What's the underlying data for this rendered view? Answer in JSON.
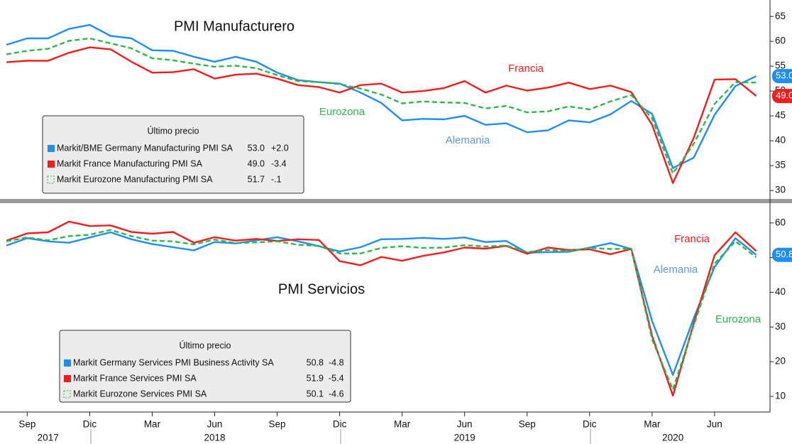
{
  "chart_data": [
    {
      "type": "line",
      "title": "PMI Manufacturero",
      "x": [
        "2017-08",
        "2017-09",
        "2017-10",
        "2017-11",
        "2017-12",
        "2018-01",
        "2018-02",
        "2018-03",
        "2018-04",
        "2018-05",
        "2018-06",
        "2018-07",
        "2018-08",
        "2018-09",
        "2018-10",
        "2018-11",
        "2018-12",
        "2019-01",
        "2019-02",
        "2019-03",
        "2019-04",
        "2019-05",
        "2019-06",
        "2019-07",
        "2019-08",
        "2019-09",
        "2019-10",
        "2019-11",
        "2019-12",
        "2020-01",
        "2020-02",
        "2020-03",
        "2020-04",
        "2020-05",
        "2020-06",
        "2020-07",
        "2020-08"
      ],
      "ylim": [
        28.3,
        67.6
      ],
      "yticks": [
        30,
        35,
        40,
        45,
        50,
        55,
        60,
        65
      ],
      "legend_title": "Último precio",
      "series": [
        {
          "name": "Markit/BME Germany Manufacturing PMI SA",
          "color": "#1f8ef1",
          "last": "53.0",
          "change": "+2.0",
          "badge": true,
          "dashed": false,
          "values": [
            59.3,
            60.6,
            60.6,
            62.5,
            63.3,
            61.1,
            60.6,
            58.2,
            58.1,
            56.9,
            55.9,
            56.9,
            55.9,
            53.7,
            52.2,
            51.8,
            51.5,
            49.7,
            47.6,
            44.1,
            44.4,
            44.3,
            45.0,
            43.2,
            43.5,
            41.7,
            42.1,
            44.1,
            43.7,
            45.3,
            48.0,
            45.4,
            34.5,
            36.6,
            45.2,
            51.0,
            53.0
          ]
        },
        {
          "name": "Markit France Manufacturing PMI SA",
          "color": "#f21d1d",
          "last": "49.0",
          "change": "-3.4",
          "badge": true,
          "dashed": false,
          "values": [
            55.8,
            56.1,
            56.1,
            57.7,
            58.8,
            58.4,
            55.9,
            53.7,
            53.8,
            54.4,
            52.5,
            53.3,
            53.5,
            52.5,
            51.2,
            50.8,
            49.7,
            51.2,
            51.5,
            49.7,
            50.0,
            50.6,
            52.0,
            49.7,
            51.1,
            50.1,
            50.7,
            51.7,
            50.4,
            51.1,
            49.8,
            43.2,
            31.5,
            40.6,
            52.3,
            52.4,
            49.0
          ]
        },
        {
          "name": "Markit Eurozone Manufacturing PMI SA",
          "color": "#2db84a",
          "last": "51.7",
          "change": "-.1",
          "badge": false,
          "dashed": true,
          "values": [
            57.4,
            58.1,
            58.5,
            60.1,
            60.6,
            59.6,
            58.6,
            56.6,
            56.2,
            55.5,
            54.9,
            55.1,
            54.6,
            53.2,
            52.0,
            51.8,
            51.4,
            50.5,
            49.3,
            47.5,
            47.9,
            47.7,
            47.6,
            46.5,
            47.0,
            45.7,
            45.9,
            46.9,
            46.3,
            47.9,
            49.2,
            44.5,
            33.4,
            39.4,
            47.4,
            51.8,
            51.7
          ]
        }
      ],
      "annotations": [
        {
          "text": "Francia",
          "color": "#f21d1d"
        },
        {
          "text": "Eurozona",
          "color": "#2db84a"
        },
        {
          "text": "Alemania",
          "color": "#5b9be0"
        }
      ]
    },
    {
      "type": "line",
      "title": "PMI Servicios",
      "x": [
        "2017-08",
        "2017-09",
        "2017-10",
        "2017-11",
        "2017-12",
        "2018-01",
        "2018-02",
        "2018-03",
        "2018-04",
        "2018-05",
        "2018-06",
        "2018-07",
        "2018-08",
        "2018-09",
        "2018-10",
        "2018-11",
        "2018-12",
        "2019-01",
        "2019-02",
        "2019-03",
        "2019-04",
        "2019-05",
        "2019-06",
        "2019-07",
        "2019-08",
        "2019-09",
        "2019-10",
        "2019-11",
        "2019-12",
        "2020-01",
        "2020-02",
        "2020-03",
        "2020-04",
        "2020-05",
        "2020-06",
        "2020-07",
        "2020-08"
      ],
      "ylim": [
        5.5,
        65.7
      ],
      "yticks": [
        10,
        20,
        30,
        40,
        50,
        60
      ],
      "xticks": [
        {
          "value": "2017-09",
          "label": "Sep"
        },
        {
          "value": "2017-12",
          "label": "Dic"
        },
        {
          "value": "2018-03",
          "label": "Mar"
        },
        {
          "value": "2018-06",
          "label": "Jun"
        },
        {
          "value": "2018-09",
          "label": "Sep"
        },
        {
          "value": "2018-12",
          "label": "Dic"
        },
        {
          "value": "2019-03",
          "label": "Mar"
        },
        {
          "value": "2019-06",
          "label": "Jun"
        },
        {
          "value": "2019-09",
          "label": "Sep"
        },
        {
          "value": "2019-12",
          "label": "Dic"
        },
        {
          "value": "2020-03",
          "label": "Mar"
        },
        {
          "value": "2020-06",
          "label": "Jun"
        }
      ],
      "year_ticks": [
        {
          "value": "2017-10",
          "label": "2017"
        },
        {
          "value": "2018-06",
          "label": "2018"
        },
        {
          "value": "2019-06",
          "label": "2019"
        },
        {
          "value": "2020-04",
          "label": "2020"
        }
      ],
      "legend_title": "Último precio",
      "series": [
        {
          "name": "Markit Germany Services PMI Business Activity SA",
          "color": "#1f8ef1",
          "last": "50.8",
          "change": "-4.8",
          "badge": true,
          "dashed": false,
          "values": [
            53.5,
            55.6,
            54.7,
            54.3,
            55.8,
            57.3,
            55.3,
            53.9,
            53.0,
            52.1,
            54.5,
            54.1,
            55.0,
            55.9,
            54.7,
            53.3,
            51.8,
            53.0,
            55.3,
            55.4,
            55.7,
            55.4,
            55.8,
            54.5,
            54.8,
            51.4,
            51.6,
            51.7,
            52.9,
            54.2,
            52.5,
            31.7,
            16.2,
            32.6,
            47.3,
            55.6,
            50.8
          ]
        },
        {
          "name": "Markit France Services PMI SA",
          "color": "#f21d1d",
          "last": "51.9",
          "change": "-5.4",
          "badge": false,
          "dashed": false,
          "values": [
            54.9,
            57.0,
            57.3,
            60.4,
            59.1,
            59.3,
            57.4,
            56.9,
            57.4,
            54.3,
            55.9,
            54.9,
            55.4,
            54.8,
            55.3,
            55.1,
            49.0,
            47.8,
            50.2,
            49.1,
            50.5,
            51.5,
            52.9,
            52.6,
            53.4,
            51.1,
            52.9,
            52.2,
            52.4,
            51.0,
            52.5,
            27.4,
            10.2,
            31.1,
            50.7,
            57.3,
            51.9
          ]
        },
        {
          "name": "Markit Eurozone Services PMI SA",
          "color": "#2db84a",
          "last": "50.1",
          "change": "-4.6",
          "badge": false,
          "dashed": true,
          "values": [
            54.7,
            55.8,
            55.0,
            56.2,
            56.6,
            58.0,
            56.2,
            54.9,
            54.7,
            53.8,
            55.2,
            54.2,
            54.4,
            54.7,
            53.7,
            53.4,
            51.2,
            51.2,
            52.8,
            53.3,
            52.8,
            52.9,
            53.6,
            53.2,
            53.5,
            51.6,
            52.2,
            51.9,
            52.8,
            52.5,
            52.6,
            26.4,
            12.0,
            30.5,
            48.3,
            54.7,
            50.1
          ]
        }
      ],
      "annotations": [
        {
          "text": "Francia",
          "color": "#f21d1d"
        },
        {
          "text": "Alemania",
          "color": "#5b9be0"
        },
        {
          "text": "Eurozona",
          "color": "#2db84a"
        }
      ]
    }
  ]
}
